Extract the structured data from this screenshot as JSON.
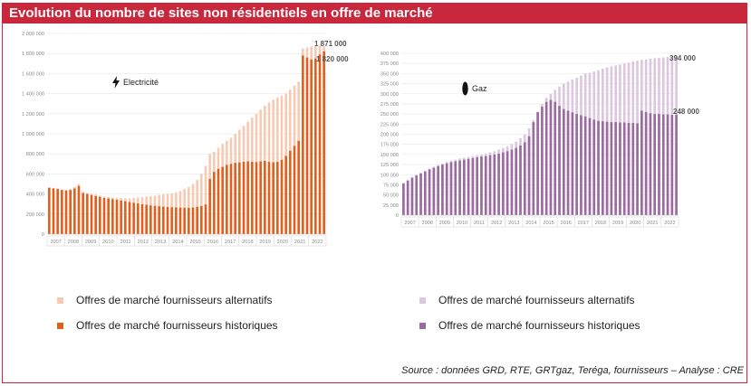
{
  "title": "Evolution du nombre de sites non résidentiels en offre de marché",
  "source": "Source : données GRD, RTE, GRTgaz, Teréga, fournisseurs – Analyse : CRE",
  "colors": {
    "title_bg": "#c8273c",
    "elec_alt": "#f7c9b3",
    "elec_hist": "#e25e1c",
    "gaz_alt": "#dcc8de",
    "gaz_hist": "#9a6aa0"
  },
  "chart_data": [
    {
      "type": "bar",
      "id": "elec",
      "label": "Electricité",
      "icon": "lightning-icon",
      "ylim": [
        0,
        2000000
      ],
      "yticks": [
        0,
        200000,
        400000,
        600000,
        800000,
        1000000,
        1200000,
        1400000,
        1600000,
        1800000,
        2000000
      ],
      "ytick_labels": [
        "0",
        "200 000",
        "400 000",
        "600 000",
        "800 000",
        "1 000 000",
        "1 200 000",
        "1 400 000",
        "1 600 000",
        "1 800 000",
        "2 000 000"
      ],
      "year_labels": [
        "2007",
        "2008",
        "2009",
        "2010",
        "2011",
        "2012",
        "2013",
        "2014",
        "2015",
        "2016",
        "2017",
        "2018",
        "2019",
        "2020",
        "2021",
        "2022"
      ],
      "series": [
        {
          "name": "Offres de marché fournisseurs alternatifs",
          "color": "#f7c9b3",
          "values": [
            470000,
            460000,
            455000,
            445000,
            440000,
            450000,
            470000,
            500000,
            420000,
            410000,
            400000,
            395000,
            385000,
            375000,
            370000,
            365000,
            362000,
            360000,
            358000,
            356000,
            360000,
            365000,
            370000,
            375000,
            380000,
            385000,
            390000,
            395000,
            400000,
            405000,
            415000,
            430000,
            450000,
            470000,
            500000,
            540000,
            600000,
            680000,
            800000,
            820000,
            860000,
            900000,
            930000,
            960000,
            1000000,
            1040000,
            1080000,
            1120000,
            1160000,
            1200000,
            1240000,
            1280000,
            1310000,
            1340000,
            1360000,
            1380000,
            1400000,
            1440000,
            1480000,
            1520000,
            1850000,
            1860000,
            1870000,
            1875000,
            1880000,
            1871000
          ]
        },
        {
          "name": "Offres de marché fournisseurs historiques",
          "color": "#e25e1c",
          "values": [
            460000,
            455000,
            450000,
            440000,
            435000,
            440000,
            455000,
            480000,
            410000,
            400000,
            390000,
            380000,
            370000,
            360000,
            355000,
            348000,
            342000,
            335000,
            328000,
            320000,
            312000,
            305000,
            298000,
            292000,
            286000,
            282000,
            278000,
            274000,
            270000,
            268000,
            266000,
            264000,
            262000,
            262000,
            265000,
            272000,
            280000,
            295000,
            550000,
            620000,
            650000,
            670000,
            690000,
            700000,
            710000,
            715000,
            720000,
            725000,
            720000,
            718000,
            725000,
            730000,
            720000,
            715000,
            720000,
            740000,
            780000,
            830000,
            880000,
            930000,
            1780000,
            1760000,
            1740000,
            1750000,
            1790000,
            1820000
          ]
        }
      ],
      "end_labels": [
        "1 871 000",
        "1 820 000"
      ]
    },
    {
      "type": "bar",
      "id": "gaz",
      "label": "Gaz",
      "icon": "gas-flame-icon",
      "ylim": [
        0,
        400000
      ],
      "yticks": [
        0,
        25000,
        50000,
        75000,
        100000,
        125000,
        150000,
        175000,
        200000,
        225000,
        250000,
        275000,
        300000,
        325000,
        350000,
        375000,
        400000
      ],
      "ytick_labels": [
        "0",
        "25 000",
        "50 000",
        "75 000",
        "100 000",
        "125 000",
        "150 000",
        "175 000",
        "200 000",
        "225 000",
        "250 000",
        "275 000",
        "300 000",
        "325 000",
        "350 000",
        "375 000",
        "400 000"
      ],
      "year_labels": [
        "2007",
        "2008",
        "2009",
        "2010",
        "2011",
        "2012",
        "2013",
        "2014",
        "2015",
        "2016",
        "2017",
        "2018",
        "2019",
        "2020",
        "2021",
        "2022"
      ],
      "series": [
        {
          "name": "Offres de marché fournisseurs alternatifs",
          "color": "#dcc8de",
          "values": [
            80000,
            88000,
            95000,
            100000,
            105000,
            110000,
            115000,
            120000,
            125000,
            128000,
            132000,
            135000,
            137000,
            140000,
            142000,
            144000,
            146000,
            148000,
            150000,
            152000,
            155000,
            158000,
            162000,
            166000,
            170000,
            176000,
            182000,
            190000,
            200000,
            215000,
            235000,
            255000,
            275000,
            290000,
            300000,
            310000,
            318000,
            325000,
            330000,
            335000,
            340000,
            345000,
            350000,
            352000,
            355000,
            358000,
            362000,
            365000,
            368000,
            370000,
            372000,
            375000,
            377000,
            380000,
            382000,
            384000,
            385000,
            387000,
            388000,
            389000,
            390000,
            391000,
            392000,
            394000
          ]
        },
        {
          "name": "Offres de marché fournisseurs historiques",
          "color": "#9a6aa0",
          "values": [
            78000,
            85000,
            92000,
            98000,
            103000,
            108000,
            113000,
            117000,
            121000,
            125000,
            128000,
            131000,
            133000,
            135000,
            137000,
            139000,
            141000,
            143000,
            145000,
            146000,
            148000,
            150000,
            152000,
            155000,
            158000,
            162000,
            166000,
            172000,
            180000,
            195000,
            230000,
            255000,
            268000,
            280000,
            285000,
            280000,
            270000,
            262000,
            258000,
            254000,
            250000,
            247000,
            244000,
            240000,
            236000,
            233000,
            232000,
            231000,
            230000,
            230000,
            229000,
            229000,
            228000,
            228000,
            227000,
            258000,
            255000,
            252000,
            250000,
            250000,
            249000,
            249000,
            248000,
            248000
          ]
        }
      ],
      "end_labels": [
        "394 000",
        "248 000"
      ]
    }
  ],
  "legend": {
    "elec": [
      {
        "label": "Offres de marché fournisseurs alternatifs",
        "color": "#f7c9b3"
      },
      {
        "label": "Offres de marché fournisseurs historiques",
        "color": "#e25e1c"
      }
    ],
    "gaz": [
      {
        "label": "Offres de marché fournisseurs alternatifs",
        "color": "#dcc8de"
      },
      {
        "label": "Offres de marché fournisseurs historiques",
        "color": "#9a6aa0"
      }
    ]
  }
}
